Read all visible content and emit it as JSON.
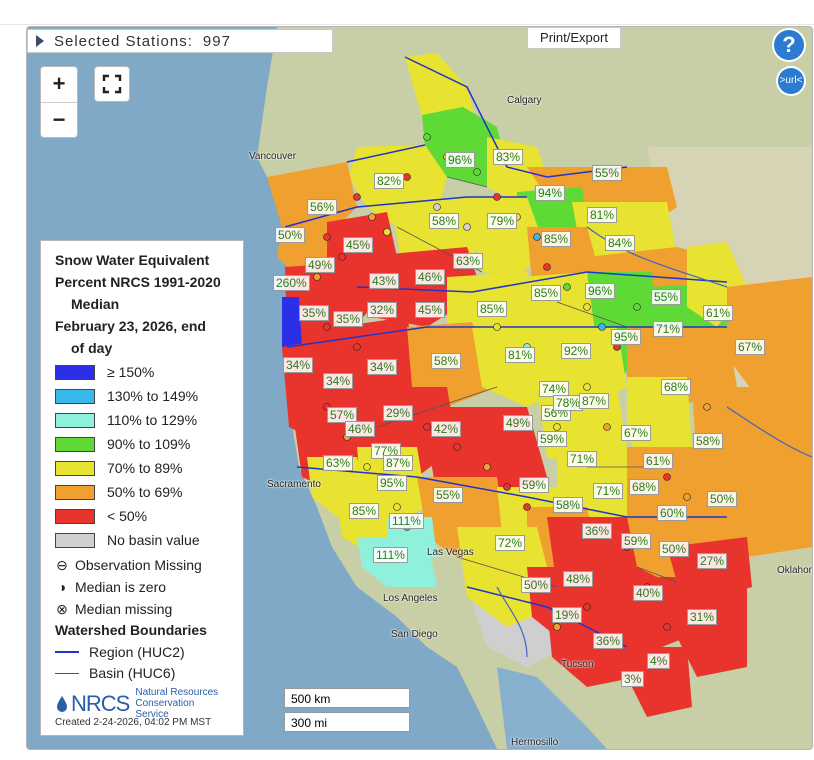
{
  "toolbar": {
    "selected_stations_label": "Selected Stations:",
    "selected_stations_count": "997",
    "print_export_label": "Print/Export",
    "help_label": "?",
    "url_label": ">url<"
  },
  "zoom": {
    "in_label": "+",
    "out_label": "−"
  },
  "legend": {
    "title_lines": [
      "Snow Water Equivalent",
      "Percent NRCS 1991-2020",
      "Median",
      "February 23, 2026, end",
      "of day"
    ],
    "classes": [
      {
        "label": "≥ 150%",
        "color": "#2b30e8"
      },
      {
        "label": "130% to 149%",
        "color": "#38b8ea"
      },
      {
        "label": "110% to 129%",
        "color": "#8ff0db"
      },
      {
        "label": "90% to 109%",
        "color": "#5fd936"
      },
      {
        "label": "70% to 89%",
        "color": "#e8e230"
      },
      {
        "label": "50% to 69%",
        "color": "#f0a02e"
      },
      {
        "label": "< 50%",
        "color": "#e8342c"
      },
      {
        "label": "No basin value",
        "color": "#d0d0d0"
      }
    ],
    "symbols": [
      {
        "glyph": "⊖",
        "label": "Observation Missing"
      },
      {
        "glyph": "◑",
        "label": "Median is zero"
      },
      {
        "glyph": "⊗",
        "label": "Median missing"
      }
    ],
    "boundaries_header": "Watershed Boundaries",
    "boundaries": [
      {
        "label": "Region (HUC2)",
        "color": "#2233cc"
      },
      {
        "label": "Basin (HUC6)",
        "color": "#555555"
      }
    ],
    "logo_name": "NRCS",
    "logo_subtitle": "Natural Resources Conservation Service",
    "created": "Created 2-24-2026, 04:02 PM MST"
  },
  "scale_bar": {
    "km": "500 km",
    "mi": "300 mi"
  },
  "cities": [
    "Calgary",
    "Vancouver",
    "Sacramento",
    "Los Angeles",
    "San Diego",
    "Tucson",
    "Hermosillo",
    "Oklahoma",
    "Las Vegas"
  ],
  "basin_labels": [
    "96%",
    "83%",
    "82%",
    "56%",
    "55%",
    "94%",
    "81%",
    "50%",
    "45%",
    "58%",
    "79%",
    "85%",
    "84%",
    "49%",
    "63%",
    "260%",
    "43%",
    "46%",
    "85%",
    "96%",
    "55%",
    "61%",
    "35%",
    "35%",
    "32%",
    "45%",
    "85%",
    "95%",
    "71%",
    "67%",
    "58%",
    "81%",
    "92%",
    "34%",
    "34%",
    "34%",
    "74%",
    "68%",
    "57%",
    "29%",
    "56%",
    "78%",
    "87%",
    "46%",
    "42%",
    "49%",
    "59%",
    "67%",
    "58%",
    "77%",
    "63%",
    "87%",
    "71%",
    "61%",
    "95%",
    "55%",
    "59%",
    "71%",
    "68%",
    "50%",
    "85%",
    "111%",
    "58%",
    "60%",
    "72%",
    "36%",
    "59%",
    "50%",
    "27%",
    "111%",
    "48%",
    "40%",
    "50%",
    "19%",
    "31%",
    "36%",
    "4%",
    "3%"
  ]
}
